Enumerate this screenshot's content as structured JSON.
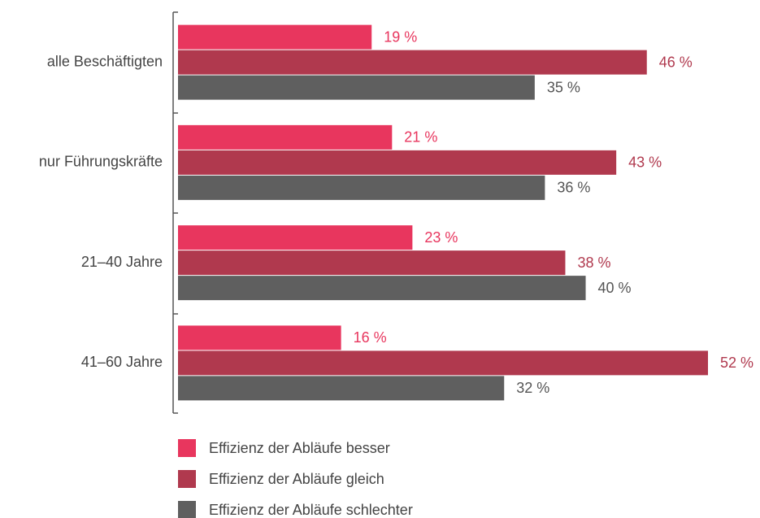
{
  "chart_data": {
    "type": "bar",
    "orientation": "horizontal",
    "categories": [
      "alle Beschäftigten",
      "nur Führungskräfte",
      "21–40 Jahre",
      "41–60 Jahre"
    ],
    "series": [
      {
        "name": "Effizienz der Abläufe besser",
        "color": "#e8365e",
        "values": [
          19,
          21,
          23,
          16
        ],
        "value_labels": [
          "19 %",
          "21 %",
          "23 %",
          "16 %"
        ]
      },
      {
        "name": "Effizienz der Abläufe gleich",
        "color": "#b0394e",
        "values": [
          46,
          43,
          38,
          52
        ],
        "value_labels": [
          "46 %",
          "43 %",
          "38 %",
          "52 %"
        ]
      },
      {
        "name": "Effizienz der Abläufe schlechter",
        "color": "#5f5f5f",
        "values": [
          35,
          36,
          40,
          32
        ],
        "value_labels": [
          "35 %",
          "36 %",
          "40 %",
          "32 %"
        ]
      }
    ]
  }
}
